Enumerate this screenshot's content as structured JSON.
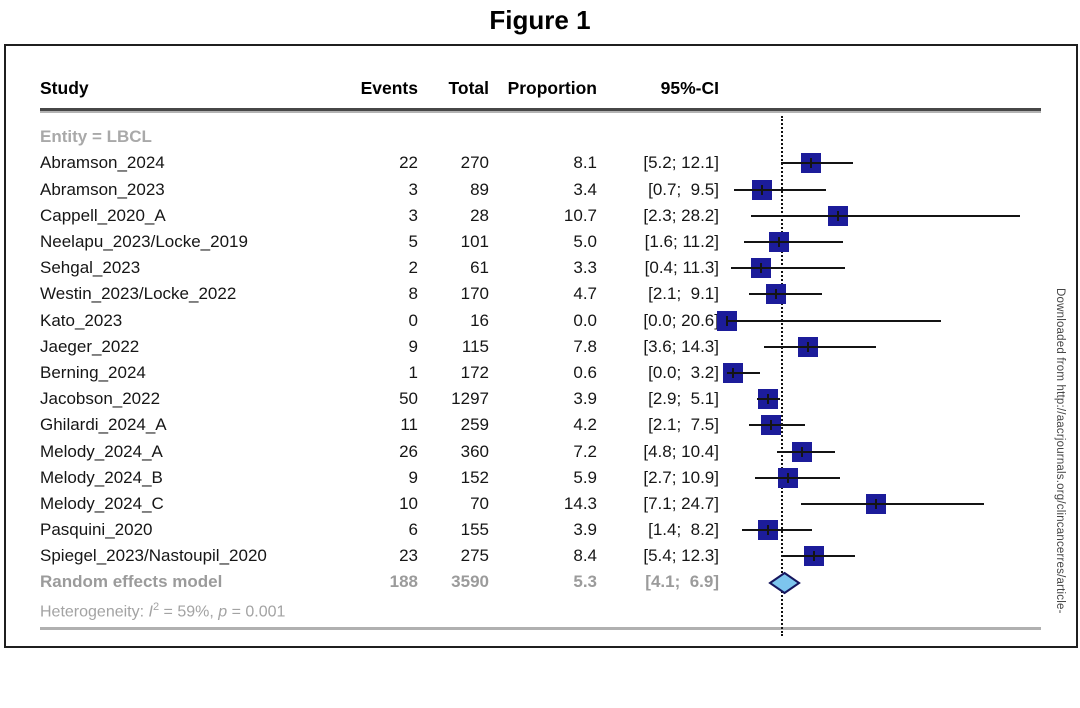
{
  "figure": {
    "title": "Figure 1"
  },
  "watermark": "Downloaded from http://aacrjournals.org/clincancerres/article-",
  "chart_data": {
    "type": "forest",
    "columns": [
      "Study",
      "Events",
      "Total",
      "Proportion",
      "95%-CI"
    ],
    "subgroup_label": "Entity = LBCL",
    "studies": [
      {
        "study": "Abramson_2024",
        "events": 22,
        "total": 270,
        "proportion": 8.1,
        "ci_low": 5.2,
        "ci_high": 12.1,
        "ci_text": "[5.2; 12.1]"
      },
      {
        "study": "Abramson_2023",
        "events": 3,
        "total": 89,
        "proportion": 3.4,
        "ci_low": 0.7,
        "ci_high": 9.5,
        "ci_text": "[0.7;  9.5]"
      },
      {
        "study": "Cappell_2020_A",
        "events": 3,
        "total": 28,
        "proportion": 10.7,
        "ci_low": 2.3,
        "ci_high": 28.2,
        "ci_text": "[2.3; 28.2]"
      },
      {
        "study": "Neelapu_2023/Locke_2019",
        "events": 5,
        "total": 101,
        "proportion": 5.0,
        "ci_low": 1.6,
        "ci_high": 11.2,
        "ci_text": "[1.6; 11.2]"
      },
      {
        "study": "Sehgal_2023",
        "events": 2,
        "total": 61,
        "proportion": 3.3,
        "ci_low": 0.4,
        "ci_high": 11.3,
        "ci_text": "[0.4; 11.3]"
      },
      {
        "study": "Westin_2023/Locke_2022",
        "events": 8,
        "total": 170,
        "proportion": 4.7,
        "ci_low": 2.1,
        "ci_high": 9.1,
        "ci_text": "[2.1;  9.1]"
      },
      {
        "study": "Kato_2023",
        "events": 0,
        "total": 16,
        "proportion": 0.0,
        "ci_low": 0.0,
        "ci_high": 20.6,
        "ci_text": "[0.0; 20.6]"
      },
      {
        "study": "Jaeger_2022",
        "events": 9,
        "total": 115,
        "proportion": 7.8,
        "ci_low": 3.6,
        "ci_high": 14.3,
        "ci_text": "[3.6; 14.3]"
      },
      {
        "study": "Berning_2024",
        "events": 1,
        "total": 172,
        "proportion": 0.6,
        "ci_low": 0.0,
        "ci_high": 3.2,
        "ci_text": "[0.0;  3.2]"
      },
      {
        "study": "Jacobson_2022",
        "events": 50,
        "total": 1297,
        "proportion": 3.9,
        "ci_low": 2.9,
        "ci_high": 5.1,
        "ci_text": "[2.9;  5.1]"
      },
      {
        "study": "Ghilardi_2024_A",
        "events": 11,
        "total": 259,
        "proportion": 4.2,
        "ci_low": 2.1,
        "ci_high": 7.5,
        "ci_text": "[2.1;  7.5]"
      },
      {
        "study": "Melody_2024_A",
        "events": 26,
        "total": 360,
        "proportion": 7.2,
        "ci_low": 4.8,
        "ci_high": 10.4,
        "ci_text": "[4.8; 10.4]"
      },
      {
        "study": "Melody_2024_B",
        "events": 9,
        "total": 152,
        "proportion": 5.9,
        "ci_low": 2.7,
        "ci_high": 10.9,
        "ci_text": "[2.7; 10.9]"
      },
      {
        "study": "Melody_2024_C",
        "events": 10,
        "total": 70,
        "proportion": 14.3,
        "ci_low": 7.1,
        "ci_high": 24.7,
        "ci_text": "[7.1; 24.7]"
      },
      {
        "study": "Pasquini_2020",
        "events": 6,
        "total": 155,
        "proportion": 3.9,
        "ci_low": 1.4,
        "ci_high": 8.2,
        "ci_text": "[1.4;  8.2]"
      },
      {
        "study": "Spiegel_2023/Nastoupil_2020",
        "events": 23,
        "total": 275,
        "proportion": 8.4,
        "ci_low": 5.4,
        "ci_high": 12.3,
        "ci_text": "[5.4; 12.3]"
      }
    ],
    "summary": {
      "study": "Random effects model",
      "events": "188",
      "total": "3590",
      "proportion": "5.3",
      "ci_low": 4.1,
      "ci_high": 6.9,
      "ci_text": "[4.1;  6.9]"
    },
    "heterogeneity": {
      "prefix": "Heterogeneity: ",
      "i_symbol": "I",
      "i_sup": "2",
      "mid": " = 59%, ",
      "p_symbol": "p",
      "tail": " = 0.001"
    },
    "axis": {
      "ref_line_value": 5.3,
      "x_min": 0,
      "x_max": 30,
      "grid": false
    },
    "colors": {
      "square": "#1c1c9a",
      "ci_line": "#141414",
      "diamond_fill": "#7dc5ee",
      "diamond_border": "#16165e",
      "subtle_text": "#a9a9a9"
    }
  }
}
